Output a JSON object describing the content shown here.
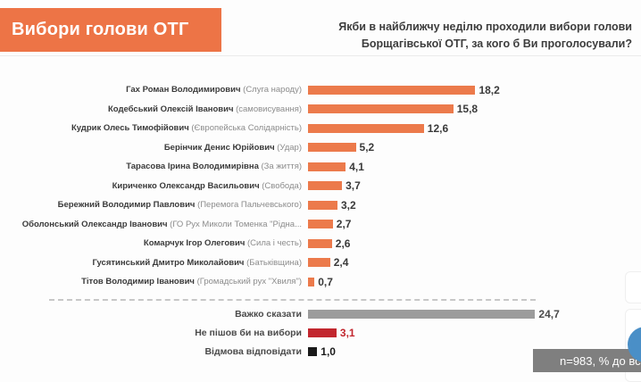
{
  "header": {
    "title": "Вибори голови ОТГ"
  },
  "question": "Якби в найближчу неділю проходили вибори голови Борщагівської ОТГ, за кого б Ви проголосували?",
  "footnote": "n=983, % до всіх",
  "colors": {
    "banner_orange": "#ED7446",
    "bar_orange": "#EC7A4B",
    "bar_gray": "#9C9C9C",
    "bar_red": "#C2262E",
    "bar_black": "#1A1A1A",
    "footnote_bg": "#7F7F7F",
    "fab_blue": "#4A8FC7"
  },
  "chart_data": {
    "type": "bar",
    "orientation": "horizontal",
    "title": "Якби в найближчу неділю проходили вибори голови Борщагівської ОТГ, за кого б Ви проголосували?",
    "xlabel": "",
    "ylabel": "",
    "xlim": [
      0,
      36
    ],
    "grid": false,
    "legend": "none",
    "value_units": "% до всіх, n=983",
    "categories": [
      "Гах Роман Володимирович (Слуга народу)",
      "Кодебський Олексій Іванович (самовисування)",
      "Кудрик Олесь Тимофійович (Європейська Солідарність)",
      "Берінчик Денис Юрійович (Удар)",
      "Тарасова Ірина Володимирівна (За життя)",
      "Кириченко Олександр Васильович (Свобода)",
      "Бережний Володимир Павлович (Перемога Пальчевського)",
      "Оболонський Олександр Іванович (ГО Рух Миколи Томенка \"Рідна...",
      "Комарчук Ігор Олегович (Сила і честь)",
      "Гусятинський Дмитро Миколайович (Батьківщина)",
      "Тітов Володимир Іванович (Громадський рух \"Хвиля\")",
      "Важко сказати",
      "Не пішов би на вибори",
      "Відмова відповідати"
    ],
    "values": [
      18.2,
      15.8,
      12.6,
      5.2,
      4.1,
      3.7,
      3.2,
      2.7,
      2.6,
      2.4,
      0.7,
      24.7,
      3.1,
      1.0
    ],
    "candidates": [
      {
        "name": "Гах Роман Володимирович",
        "party": "(Слуга народу)",
        "value": 18.2,
        "value_label": "18,2"
      },
      {
        "name": "Кодебський Олексій Іванович",
        "party": "(самовисування)",
        "value": 15.8,
        "value_label": "15,8"
      },
      {
        "name": "Кудрик Олесь Тимофійович",
        "party": "(Європейська Солідарність)",
        "value": 12.6,
        "value_label": "12,6"
      },
      {
        "name": "Берінчик Денис Юрійович",
        "party": "(Удар)",
        "value": 5.2,
        "value_label": "5,2"
      },
      {
        "name": "Тарасова Ірина Володимирівна",
        "party": "(За життя)",
        "value": 4.1,
        "value_label": "4,1"
      },
      {
        "name": "Кириченко Олександр Васильович",
        "party": "(Свобода)",
        "value": 3.7,
        "value_label": "3,7"
      },
      {
        "name": "Бережний Володимир Павлович",
        "party": "(Перемога Пальчевського)",
        "value": 3.2,
        "value_label": "3,2"
      },
      {
        "name": "Оболонський Олександр Іванович",
        "party": "(ГО Рух Миколи Томенка \"Рідна...",
        "value": 2.7,
        "value_label": "2,7"
      },
      {
        "name": "Комарчук Ігор Олегович",
        "party": "(Сила і честь)",
        "value": 2.6,
        "value_label": "2,6"
      },
      {
        "name": "Гусятинський Дмитро Миколайович",
        "party": "(Батьківщина)",
        "value": 2.4,
        "value_label": "2,4"
      },
      {
        "name": "Тітов Володимир Іванович",
        "party": "(Громадський рух \"Хвиля\")",
        "value": 0.7,
        "value_label": "0,7"
      }
    ],
    "other": [
      {
        "label": "Важко сказати",
        "value": 24.7,
        "value_label": "24,7",
        "bar_color": "#9C9C9C",
        "value_color": "#4a4a4a"
      },
      {
        "label": "Не пішов би на вибори",
        "value": 3.1,
        "value_label": "3,1",
        "bar_color": "#C2262E",
        "value_color": "#C2262E"
      },
      {
        "label": "Відмова відповідати",
        "value": 1.0,
        "value_label": "1,0",
        "bar_color": "#1A1A1A",
        "value_color": "#1a1a1a"
      }
    ]
  }
}
